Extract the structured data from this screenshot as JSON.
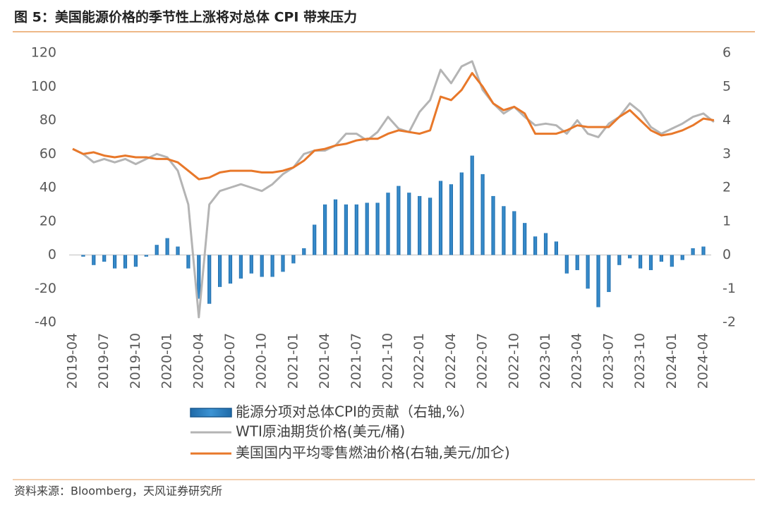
{
  "chart_data": {
    "type": "bar",
    "title": "图 5：美国能源价格的季节性上涨将对总体 CPI 带来压力",
    "source": "资料来源：Bloomberg，天风证券研究所",
    "categories": [
      "2019-04",
      null,
      null,
      "2019-07",
      null,
      null,
      "2019-10",
      null,
      null,
      "2020-01",
      null,
      null,
      "2020-04",
      null,
      null,
      "2020-07",
      null,
      null,
      "2020-10",
      null,
      null,
      "2021-01",
      null,
      null,
      "2021-04",
      null,
      null,
      "2021-07",
      null,
      null,
      "2021-10",
      null,
      null,
      "2022-01",
      null,
      null,
      "2022-04",
      null,
      null,
      "2022-07",
      null,
      null,
      "2022-10",
      null,
      null,
      "2023-01",
      null,
      null,
      "2023-04",
      null,
      null,
      "2023-07",
      null,
      null,
      "2023-10",
      null,
      null,
      "2024-01",
      null,
      null,
      "2024-04",
      null
    ],
    "series": [
      {
        "name": "能源分项对总体CPI的贡献（右轴,%）",
        "type": "bar",
        "axis": "y2",
        "color": "#2a7fc1",
        "values": [
          null,
          -0.05,
          -0.3,
          -0.2,
          -0.4,
          -0.4,
          -0.35,
          -0.05,
          0.3,
          0.5,
          0.25,
          -0.4,
          -1.3,
          -1.45,
          -0.95,
          -0.85,
          -0.7,
          -0.55,
          -0.65,
          -0.65,
          -0.5,
          -0.25,
          0.2,
          0.9,
          1.5,
          1.65,
          1.5,
          1.5,
          1.55,
          1.55,
          1.85,
          2.05,
          1.85,
          1.75,
          1.7,
          2.2,
          2.1,
          2.45,
          2.95,
          2.4,
          1.75,
          1.45,
          1.3,
          0.95,
          0.55,
          0.65,
          0.4,
          -0.55,
          -0.45,
          -1.0,
          -1.55,
          -1.1,
          -0.3,
          -0.1,
          -0.4,
          -0.45,
          -0.2,
          -0.35,
          -0.15,
          0.2,
          0.25,
          null
        ]
      },
      {
        "name": "WTI原油期货价格(美元/桶)",
        "type": "line",
        "axis": "y",
        "color": "#b4b4b4",
        "values": [
          63,
          60,
          55,
          57,
          55,
          57,
          54,
          57,
          60,
          58,
          50,
          30,
          -37,
          30,
          38,
          40,
          42,
          40,
          38,
          42,
          48,
          52,
          60,
          62,
          62,
          65,
          72,
          72,
          68,
          73,
          82,
          75,
          73,
          85,
          92,
          110,
          102,
          112,
          115,
          98,
          90,
          84,
          88,
          82,
          77,
          78,
          77,
          72,
          80,
          72,
          70,
          78,
          82,
          90,
          85,
          76,
          72,
          75,
          78,
          82,
          84,
          79
        ]
      },
      {
        "name": "美国国内平均零售燃油价格(右轴,美元/加仑)",
        "type": "line",
        "axis": "y2",
        "color": "#e8782a",
        "values": [
          3.15,
          3.0,
          3.05,
          2.95,
          2.9,
          2.95,
          2.9,
          2.9,
          2.85,
          2.85,
          2.75,
          2.5,
          2.25,
          2.3,
          2.45,
          2.5,
          2.5,
          2.5,
          2.45,
          2.45,
          2.5,
          2.6,
          2.8,
          3.1,
          3.15,
          3.25,
          3.3,
          3.4,
          3.45,
          3.45,
          3.6,
          3.7,
          3.65,
          3.6,
          3.7,
          4.7,
          4.6,
          4.9,
          5.4,
          5.0,
          4.5,
          4.3,
          4.4,
          4.2,
          3.6,
          3.6,
          3.6,
          3.7,
          3.85,
          3.8,
          3.8,
          3.8,
          4.1,
          4.3,
          4.0,
          3.7,
          3.55,
          3.6,
          3.7,
          3.85,
          4.05,
          4.0
        ]
      }
    ],
    "ylim": [
      -40,
      120
    ],
    "yticks": [
      -40,
      -20,
      0,
      20,
      40,
      60,
      80,
      100,
      120
    ],
    "y2lim": [
      -2,
      6
    ],
    "y2ticks": [
      -2,
      -1,
      0,
      1,
      2,
      3,
      4,
      5,
      6
    ],
    "grid": false,
    "legend": "bottom"
  }
}
